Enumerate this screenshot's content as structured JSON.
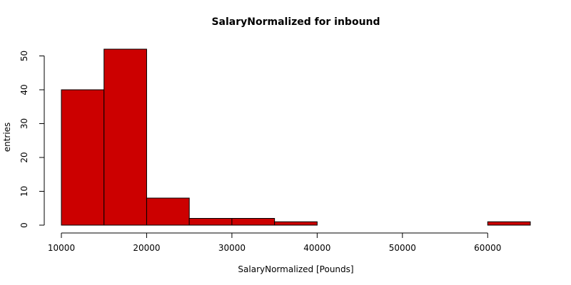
{
  "chart_data": {
    "type": "bar",
    "title": "SalaryNormalized for inbound",
    "xlabel": "SalaryNormalized [Pounds]",
    "ylabel": "entries",
    "bin_edges": [
      10000,
      15000,
      20000,
      25000,
      30000,
      35000,
      40000,
      45000,
      50000,
      55000,
      60000,
      65000
    ],
    "values": [
      40,
      52,
      8,
      2,
      2,
      1,
      0,
      0,
      0,
      0,
      1
    ],
    "xlim": [
      10000,
      65000
    ],
    "ylim": [
      0,
      52
    ],
    "x_ticks": [
      10000,
      20000,
      30000,
      40000,
      50000,
      60000
    ],
    "y_ticks": [
      0,
      10,
      20,
      30,
      40,
      50
    ],
    "bar_color": "#cc0000",
    "grid": false,
    "legend": "none"
  }
}
